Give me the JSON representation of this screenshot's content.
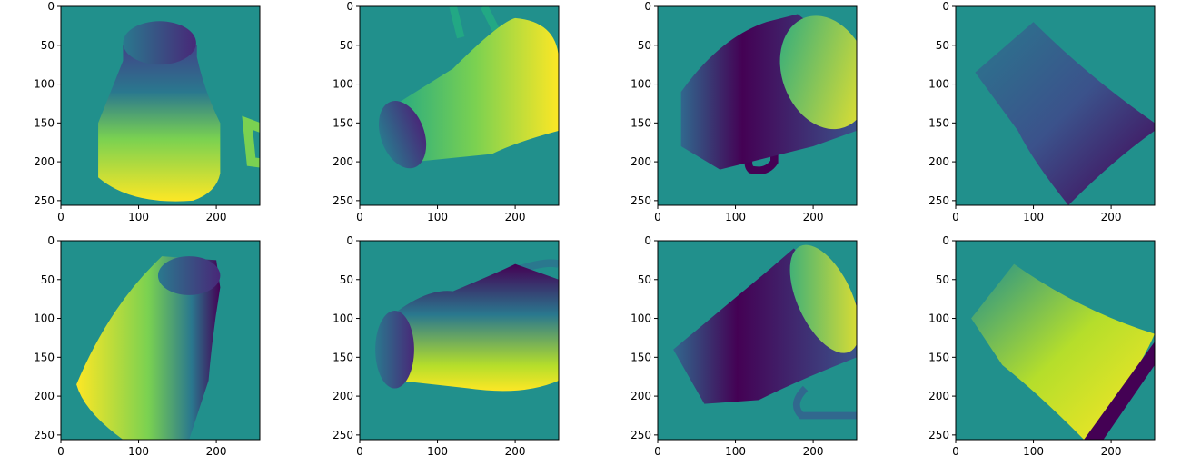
{
  "figure": {
    "background": "#ffffff"
  },
  "colormap": "viridis",
  "colors": {
    "background_depth": "#21908c",
    "low": "#440154",
    "high": "#fde725"
  },
  "axes_common": {
    "xticks": [
      0,
      100,
      200
    ],
    "yticks": [
      0,
      50,
      100,
      150,
      200,
      250
    ],
    "xlim": [
      0,
      255
    ],
    "ylim": [
      255,
      0
    ]
  },
  "chart_data": [
    {
      "type": "heatmap",
      "row": 1,
      "col": 1,
      "content": "depth map of mug, upright view",
      "xlabel": "",
      "ylabel": ""
    },
    {
      "type": "heatmap",
      "row": 1,
      "col": 2,
      "content": "depth map of mug, tilted view",
      "xlabel": "",
      "ylabel": ""
    },
    {
      "type": "heatmap",
      "row": 1,
      "col": 3,
      "content": "depth map of mug, tilted view with handle",
      "xlabel": "",
      "ylabel": ""
    },
    {
      "type": "heatmap",
      "row": 1,
      "col": 4,
      "content": "depth map of mug, rotated body",
      "xlabel": "",
      "ylabel": ""
    },
    {
      "type": "heatmap",
      "row": 2,
      "col": 1,
      "content": "depth map of mug, rotated upright view",
      "xlabel": "",
      "ylabel": ""
    },
    {
      "type": "heatmap",
      "row": 2,
      "col": 2,
      "content": "depth map of mug, horizontal view",
      "xlabel": "",
      "ylabel": ""
    },
    {
      "type": "heatmap",
      "row": 2,
      "col": 3,
      "content": "depth map of mug, opening facing right",
      "xlabel": "",
      "ylabel": ""
    },
    {
      "type": "heatmap",
      "row": 2,
      "col": 4,
      "content": "depth map of mug, rotated body",
      "xlabel": "",
      "ylabel": ""
    }
  ]
}
